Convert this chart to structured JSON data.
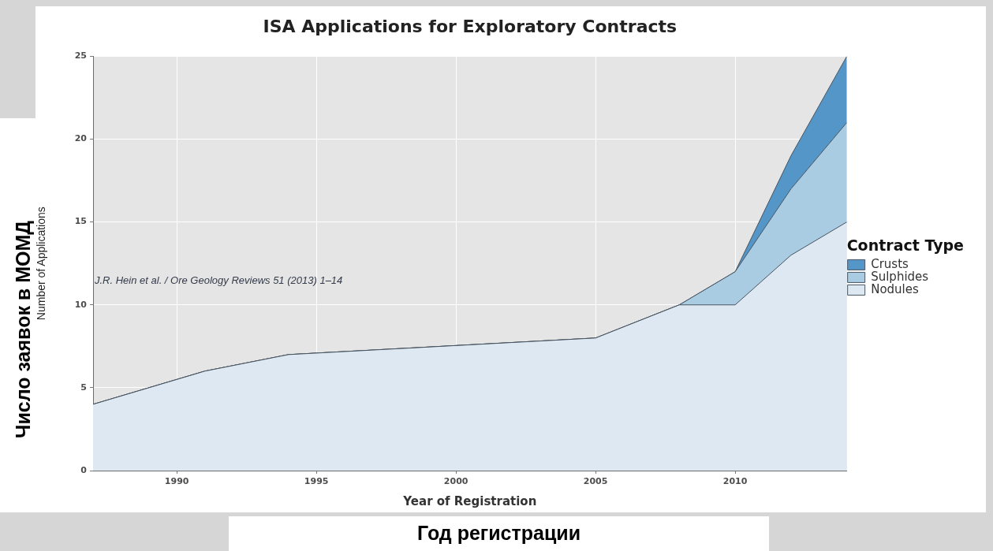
{
  "chart_data": {
    "type": "area",
    "title": "ISA Applications for Exploratory Contracts",
    "xlabel": "Year of Registration",
    "ylabel": "Number of Applications",
    "legend_title": "Contract Type",
    "annotations": [
      "J.R. Hein et al. / Ore Geology Reviews 51 (2013) 1–14",
      "Число заявок в МОМД",
      "Год регистрации"
    ],
    "x": [
      1987,
      1991,
      1994,
      2005,
      2008,
      2010,
      2012,
      2014
    ],
    "series": [
      {
        "name": "Nodules",
        "color": "#dde8f2",
        "values": [
          4,
          6,
          7,
          8,
          10,
          10,
          13,
          15
        ]
      },
      {
        "name": "Sulphides",
        "color": "#a9cce3",
        "values": [
          0,
          0,
          0,
          0,
          0,
          2,
          4,
          6
        ]
      },
      {
        "name": "Crusts",
        "color": "#5596c8",
        "values": [
          0,
          0,
          0,
          0,
          0,
          0,
          2,
          4
        ]
      }
    ],
    "stacked": true,
    "xlim": [
      1987,
      2014
    ],
    "ylim": [
      0,
      25
    ],
    "xticks": [
      1990,
      1995,
      2000,
      2005,
      2010
    ],
    "yticks": [
      0,
      5,
      10,
      15,
      20,
      25
    ],
    "grid": true,
    "legend": "right",
    "marker": "none"
  }
}
